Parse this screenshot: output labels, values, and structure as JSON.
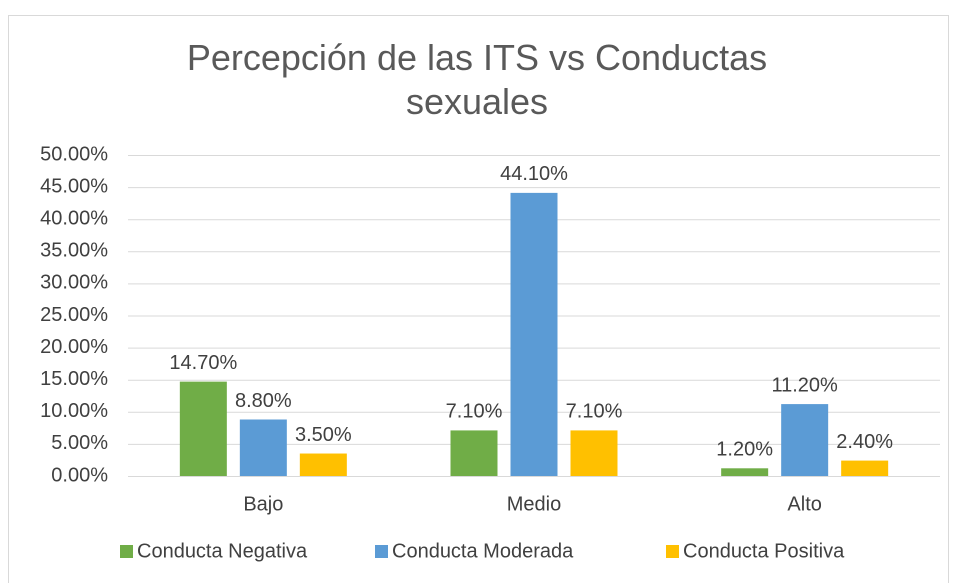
{
  "chart_data": {
    "type": "bar",
    "title": "Percepción de las ITS vs Conductas sexuales",
    "categories": [
      "Bajo",
      "Medio",
      "Alto"
    ],
    "series": [
      {
        "name": "Conducta Negativa",
        "color": "#70ad47",
        "values": [
          14.7,
          7.1,
          1.2
        ],
        "value_labels": [
          "14.70%",
          "7.10%",
          "1.20%"
        ]
      },
      {
        "name": "Conducta Moderada",
        "color": "#5b9bd5",
        "values": [
          8.8,
          44.1,
          11.2
        ],
        "value_labels": [
          "8.80%",
          "44.10%",
          "11.20%"
        ]
      },
      {
        "name": "Conducta Positiva",
        "color": "#ffc000",
        "values": [
          3.5,
          7.1,
          2.4
        ],
        "value_labels": [
          "3.50%",
          "7.10%",
          "2.40%"
        ]
      }
    ],
    "ylim": [
      0,
      50
    ],
    "yticks": [
      {
        "value": 0,
        "label": "0.00%"
      },
      {
        "value": 5,
        "label": "5.00%"
      },
      {
        "value": 10,
        "label": "10.00%"
      },
      {
        "value": 15,
        "label": "15.00%"
      },
      {
        "value": 20,
        "label": "20.00%"
      },
      {
        "value": 25,
        "label": "25.00%"
      },
      {
        "value": 30,
        "label": "30.00%"
      },
      {
        "value": 35,
        "label": "35.00%"
      },
      {
        "value": 40,
        "label": "40.00%"
      },
      {
        "value": 45,
        "label": "45.00%"
      },
      {
        "value": 50,
        "label": "50.00%"
      }
    ],
    "grid": true,
    "legend": "bottom"
  }
}
